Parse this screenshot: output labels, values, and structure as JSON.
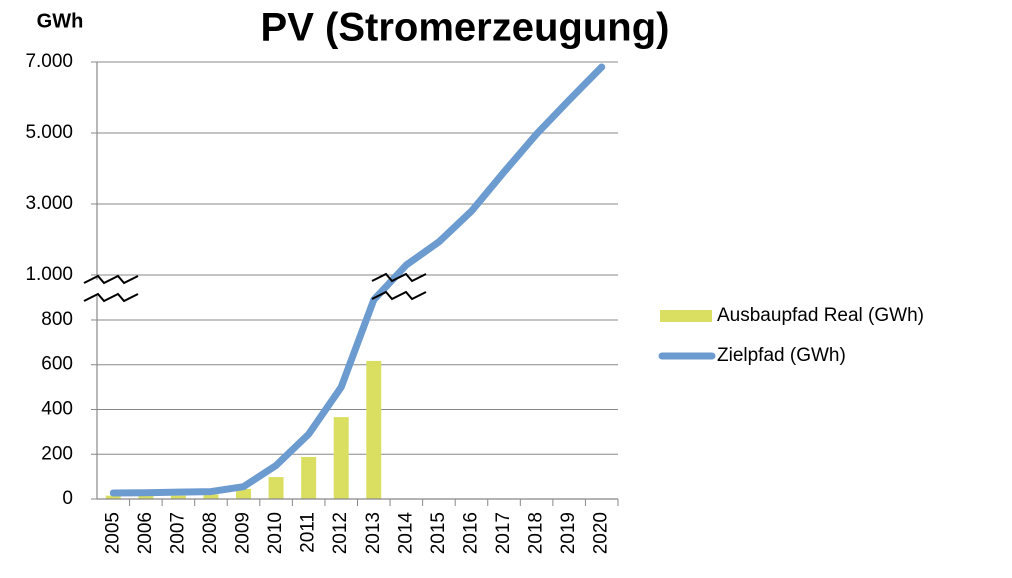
{
  "chart_data": {
    "type": "combo",
    "title": "PV (Stromerzeugung)",
    "y_label": "GWh",
    "categories": [
      "2005",
      "2006",
      "2007",
      "2008",
      "2009",
      "2010",
      "2011",
      "2012",
      "2013",
      "2014",
      "2015",
      "2016",
      "2017",
      "2018",
      "2019",
      "2020"
    ],
    "series": [
      {
        "name": "Ausbaupfad Real (GWh)",
        "type": "bar",
        "color": "#dadf62",
        "values": [
          15,
          15,
          15,
          20,
          45,
          98,
          188,
          366,
          617,
          null,
          null,
          null,
          null,
          null,
          null,
          null
        ]
      },
      {
        "name": "Zielpfad (GWh)",
        "type": "line",
        "color": "#6c9bd0",
        "values": [
          27,
          28,
          31,
          33,
          55,
          150,
          290,
          500,
          890,
          1280,
          1930,
          2800,
          3900,
          4970,
          5930,
          6860
        ]
      }
    ],
    "y_segments": [
      {
        "ylim": [
          0,
          900
        ],
        "yticks": [
          0,
          200,
          400,
          600,
          800
        ]
      },
      {
        "ylim": [
          700,
          7000
        ],
        "yticks": [
          {
            "value": 1000,
            "label": "1.000"
          },
          {
            "value": 3000,
            "label": "3.000"
          },
          {
            "value": 5000,
            "label": "5.000"
          },
          {
            "value": 7000,
            "label": "7.000"
          }
        ]
      }
    ],
    "grid": true,
    "legend": "right"
  }
}
